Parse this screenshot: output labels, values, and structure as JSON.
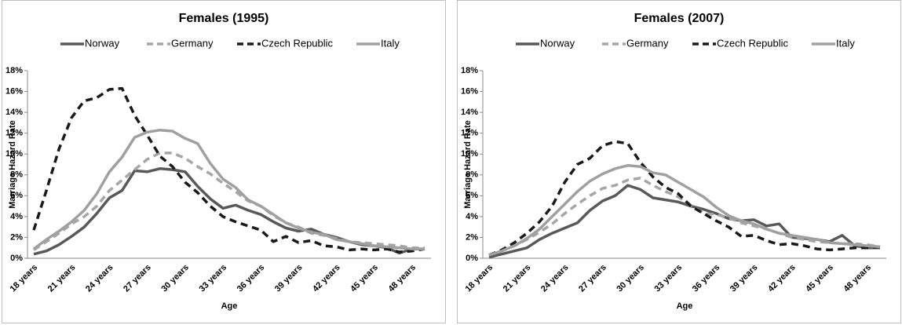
{
  "chart_data": [
    {
      "type": "line",
      "title": "Females (1995)",
      "x_label": "Age",
      "y_label": "Marriage Hazard Rate",
      "categories": [
        "18 years",
        null,
        null,
        "21 years",
        null,
        null,
        "24 years",
        null,
        null,
        "27 years",
        null,
        null,
        "30 years",
        null,
        null,
        "33 years",
        null,
        null,
        "36 years",
        null,
        null,
        "39 years",
        null,
        null,
        "42 years",
        null,
        null,
        "45 years",
        null,
        null,
        "48 years",
        null
      ],
      "ylim": [
        0,
        18
      ],
      "yticks": [
        {
          "value": 0,
          "label": "0%"
        },
        {
          "value": 2,
          "label": "2%"
        },
        {
          "value": 4,
          "label": "4%"
        },
        {
          "value": 6,
          "label": "6%"
        },
        {
          "value": 8,
          "label": "8%"
        },
        {
          "value": 10,
          "label": "10%"
        },
        {
          "value": 12,
          "label": "12%"
        },
        {
          "value": 14,
          "label": "14%"
        },
        {
          "value": 16,
          "label": "16%"
        },
        {
          "value": 18,
          "label": "18%"
        }
      ],
      "legend": "top",
      "series": [
        {
          "name": "Norway",
          "color": "#595959",
          "dashed": false,
          "values": [
            0.4,
            0.7,
            1.3,
            2.1,
            3.0,
            4.3,
            5.8,
            6.5,
            8.4,
            8.3,
            8.6,
            8.5,
            8.3,
            6.9,
            5.7,
            4.8,
            5.1,
            4.6,
            4.2,
            3.5,
            2.9,
            2.6,
            2.8,
            2.3,
            2.0,
            1.6,
            1.3,
            1.2,
            1.0,
            0.5,
            0.9,
            0.9
          ]
        },
        {
          "name": "Germany",
          "color": "#a6a6a6",
          "dashed": true,
          "values": [
            0.8,
            1.6,
            2.4,
            3.3,
            4.0,
            5.0,
            6.5,
            7.5,
            8.5,
            9.5,
            10.1,
            10.1,
            9.6,
            8.8,
            8.1,
            7.2,
            6.4,
            5.5,
            5.0,
            4.1,
            3.4,
            3.0,
            2.4,
            2.2,
            1.9,
            1.6,
            1.5,
            1.4,
            1.3,
            1.2,
            1.0,
            1.0
          ]
        },
        {
          "name": "Czech Republic",
          "color": "#1a1a1a",
          "dashed": true,
          "values": [
            2.7,
            6.5,
            10.5,
            13.5,
            15.1,
            15.4,
            16.2,
            16.3,
            13.7,
            11.8,
            9.8,
            8.8,
            7.3,
            6.3,
            5.0,
            4.0,
            3.5,
            3.1,
            2.7,
            1.6,
            2.1,
            1.5,
            1.7,
            1.2,
            1.1,
            0.8,
            0.9,
            0.8,
            0.9,
            0.6,
            0.7,
            0.9
          ]
        },
        {
          "name": "Italy",
          "color": "#a0a0a0",
          "dashed": false,
          "values": [
            0.9,
            1.8,
            2.6,
            3.5,
            4.6,
            6.2,
            8.3,
            9.7,
            11.6,
            12.1,
            12.3,
            12.2,
            11.5,
            11.0,
            9.1,
            7.6,
            6.8,
            5.6,
            5.0,
            4.2,
            3.4,
            2.9,
            2.5,
            2.3,
            1.8,
            1.6,
            1.4,
            1.2,
            1.1,
            1.0,
            0.9,
            0.9
          ]
        }
      ]
    },
    {
      "type": "line",
      "title": "Females (2007)",
      "x_label": "Age",
      "y_label": "Marriage Hazard Rate",
      "categories": [
        "18 years",
        null,
        null,
        "21 years",
        null,
        null,
        "24 years",
        null,
        null,
        "27 years",
        null,
        null,
        "30 years",
        null,
        null,
        "33 years",
        null,
        null,
        "36 years",
        null,
        null,
        "39 years",
        null,
        null,
        "42 years",
        null,
        null,
        "45 years",
        null,
        null,
        "48 years",
        null
      ],
      "ylim": [
        0,
        18
      ],
      "yticks": [
        {
          "value": 0,
          "label": "0%"
        },
        {
          "value": 2,
          "label": "2%"
        },
        {
          "value": 4,
          "label": "4%"
        },
        {
          "value": 6,
          "label": "6%"
        },
        {
          "value": 8,
          "label": "8%"
        },
        {
          "value": 10,
          "label": "10%"
        },
        {
          "value": 12,
          "label": "12%"
        },
        {
          "value": 14,
          "label": "14%"
        },
        {
          "value": 16,
          "label": "16%"
        },
        {
          "value": 18,
          "label": "18%"
        }
      ],
      "legend": "top",
      "series": [
        {
          "name": "Norway",
          "color": "#595959",
          "dashed": false,
          "values": [
            0.1,
            0.4,
            0.7,
            1.0,
            1.8,
            2.4,
            2.9,
            3.4,
            4.6,
            5.5,
            6.0,
            7.0,
            6.6,
            5.8,
            5.6,
            5.4,
            5.0,
            4.7,
            4.3,
            3.8,
            3.6,
            3.7,
            3.1,
            3.3,
            2.0,
            1.9,
            1.8,
            1.6,
            2.2,
            1.2,
            1.0,
            1.0
          ]
        },
        {
          "name": "Germany",
          "color": "#a6a6a6",
          "dashed": true,
          "values": [
            0.3,
            0.7,
            1.2,
            1.8,
            2.5,
            3.3,
            4.3,
            5.2,
            6.0,
            6.7,
            7.0,
            7.5,
            7.7,
            7.0,
            6.4,
            5.9,
            5.1,
            4.3,
            4.2,
            3.9,
            3.4,
            3.1,
            2.8,
            2.4,
            2.0,
            1.8,
            1.6,
            1.5,
            1.4,
            1.4,
            1.3,
            1.1
          ]
        },
        {
          "name": "Czech Republic",
          "color": "#1a1a1a",
          "dashed": true,
          "values": [
            0.3,
            0.8,
            1.5,
            2.4,
            3.5,
            5.0,
            7.3,
            9.0,
            9.6,
            10.8,
            11.2,
            11.0,
            9.2,
            7.8,
            6.8,
            6.2,
            5.0,
            4.3,
            3.6,
            3.0,
            2.1,
            2.2,
            1.7,
            1.3,
            1.4,
            1.2,
            0.9,
            0.8,
            0.9,
            1.0,
            1.0,
            1.1
          ]
        },
        {
          "name": "Italy",
          "color": "#a0a0a0",
          "dashed": false,
          "values": [
            0.3,
            0.7,
            1.2,
            1.9,
            2.8,
            4.0,
            5.2,
            6.4,
            7.4,
            8.1,
            8.6,
            8.9,
            8.8,
            8.2,
            8.0,
            7.3,
            6.6,
            5.9,
            4.9,
            4.1,
            3.6,
            3.3,
            2.8,
            2.4,
            2.2,
            2.0,
            1.8,
            1.5,
            1.4,
            1.3,
            1.2,
            1.1
          ]
        }
      ]
    }
  ]
}
